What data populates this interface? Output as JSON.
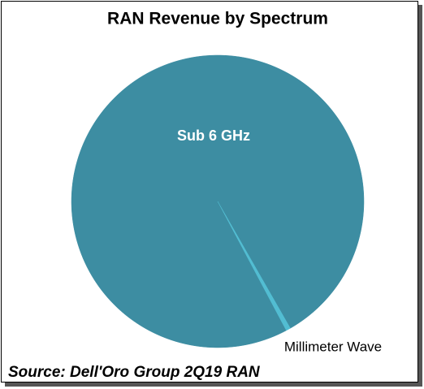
{
  "chart_data": {
    "type": "pie",
    "title": "RAN Revenue by Spectrum",
    "categories": [
      "Sub 6 GHz",
      "Millimeter Wave"
    ],
    "values": [
      99.5,
      0.5
    ],
    "colors": [
      "#3d8da2",
      "#52bdd2"
    ],
    "source": "Source: Dell'Oro Group 2Q19 RAN"
  }
}
